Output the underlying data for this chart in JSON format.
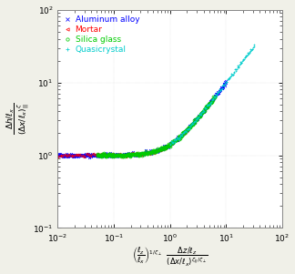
{
  "legend_entries": [
    "Aluminum alloy",
    "Mortar",
    "Silica glass",
    "Quasicrystal"
  ],
  "legend_colors": [
    "#0000ff",
    "#ff0000",
    "#00cc00",
    "#00cccc"
  ],
  "legend_markers": [
    "x",
    "<",
    "o",
    "+"
  ],
  "background_color": "#f0f0e8",
  "plot_bg": "#ffffff",
  "xlim_log": [
    -2,
    2
  ],
  "ylim_log": [
    -1,
    2
  ]
}
